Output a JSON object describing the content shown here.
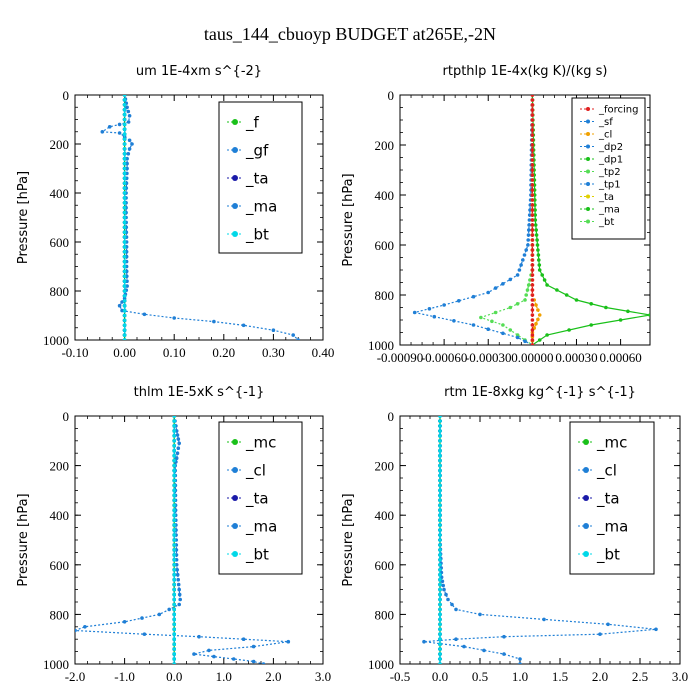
{
  "figure_title": "taus_144_cbuoyp  BUDGET at265E,-2N",
  "colors": {
    "blue": "#1f7fd6",
    "green": "#19c019",
    "navy": "#1a1aa8",
    "cyan": "#00d8e8",
    "red": "#e02020",
    "orange": "#f0a000",
    "yellow": "#e0d000",
    "green2": "#55dd55"
  },
  "chart_data": [
    {
      "type": "line",
      "title": "um  1E-4xm s^{-2}",
      "ylabel": "Pressure [hPa]",
      "xlim": [
        -0.1,
        0.4
      ],
      "ylim": [
        1000,
        0
      ],
      "xticks": [
        "-0.10",
        "0.00",
        "0.10",
        "0.20",
        "0.30",
        "0.40"
      ],
      "yticks": [
        "0",
        "200",
        "400",
        "600",
        "800",
        "1000"
      ],
      "legend_position": "top-right",
      "legend": [
        "_f",
        "_gf",
        "_ta",
        "_ma",
        "_bt"
      ],
      "series": [
        {
          "name": "_f",
          "color": "green",
          "points": [
            [
              0,
              0
            ],
            [
              0,
              100
            ],
            [
              0,
              200
            ],
            [
              0,
              300
            ],
            [
              0,
              400
            ],
            [
              0,
              500
            ],
            [
              0,
              600
            ],
            [
              0,
              700
            ],
            [
              0,
              800
            ],
            [
              0,
              900
            ],
            [
              0,
              1000
            ]
          ]
        },
        {
          "name": "_gf",
          "color": "blue",
          "points": [
            [
              0,
              0
            ],
            [
              0.005,
              50
            ],
            [
              0.01,
              85
            ],
            [
              0.008,
              110
            ],
            [
              -0.01,
              120
            ],
            [
              -0.03,
              130
            ],
            [
              -0.045,
              150
            ],
            [
              -0.01,
              155
            ],
            [
              0.0,
              170
            ],
            [
              0.01,
              185
            ],
            [
              0.015,
              200
            ],
            [
              0.01,
              220
            ],
            [
              0.005,
              260
            ],
            [
              0.005,
              300
            ],
            [
              0.003,
              400
            ],
            [
              0.003,
              500
            ],
            [
              0.004,
              600
            ],
            [
              0.004,
              700
            ],
            [
              0.005,
              780
            ],
            [
              0.0,
              830
            ],
            [
              -0.01,
              860
            ],
            [
              -0.005,
              880
            ],
            [
              0.04,
              895
            ],
            [
              0.1,
              910
            ],
            [
              0.18,
              925
            ],
            [
              0.24,
              940
            ],
            [
              0.3,
              960
            ],
            [
              0.34,
              980
            ],
            [
              0.35,
              1000
            ]
          ]
        },
        {
          "name": "_ta",
          "color": "navy",
          "points": [
            [
              0,
              0
            ],
            [
              0,
              500
            ],
            [
              0,
              1000
            ]
          ]
        },
        {
          "name": "_ma",
          "color": "blue",
          "points": [
            [
              0,
              0
            ],
            [
              0,
              500
            ],
            [
              0,
              1000
            ]
          ]
        },
        {
          "name": "_bt",
          "color": "cyan",
          "points": [
            [
              0,
              0
            ],
            [
              0,
              1000
            ]
          ]
        }
      ]
    },
    {
      "type": "line",
      "title": "rtpthlp  1E-4x(kg K)/(kg s)",
      "ylabel": "Pressure [hPa]",
      "xlim": [
        -0.0009,
        0.0008
      ],
      "ylim": [
        1000,
        0
      ],
      "xticks": [
        "-0.00090",
        "-0.00060",
        "-0.00030",
        "0.00000",
        "0.00030",
        "0.00060"
      ],
      "yticks": [
        "0",
        "200",
        "400",
        "600",
        "800",
        "1000"
      ],
      "legend_position": "top-right",
      "legend": [
        "_forcing",
        "_sf",
        "_cl",
        "_dp2",
        "_dp1",
        "_tp2",
        "_tp1",
        "_ta",
        "_ma",
        "_bt"
      ],
      "series": [
        {
          "name": "_dp1",
          "color": "green",
          "points": [
            [
              0,
              0
            ],
            [
              2e-05,
              500
            ],
            [
              5e-05,
              700
            ],
            [
              0.0001,
              760
            ],
            [
              0.0003,
              820
            ],
            [
              0.0005,
              850
            ],
            [
              0.0008,
              880
            ],
            [
              0.0004,
              920
            ],
            [
              0.0001,
              960
            ],
            [
              0,
              1000
            ]
          ]
        },
        {
          "name": "_tp2",
          "color": "green2",
          "points": [
            [
              0,
              0
            ],
            [
              0,
              700
            ],
            [
              -5e-05,
              820
            ],
            [
              -0.00015,
              850
            ],
            [
              -0.00025,
              870
            ],
            [
              -0.00035,
              890
            ],
            [
              -0.0002,
              920
            ],
            [
              -0.0001,
              960
            ],
            [
              0,
              1000
            ]
          ]
        },
        {
          "name": "_tp1",
          "color": "blue",
          "points": [
            [
              0,
              0
            ],
            [
              -1e-05,
              400
            ],
            [
              -3e-05,
              600
            ],
            [
              -0.0001,
              720
            ],
            [
              -0.0003,
              790
            ],
            [
              -0.0006,
              840
            ],
            [
              -0.0008,
              870
            ],
            [
              -0.0004,
              920
            ],
            [
              -0.0001,
              970
            ],
            [
              0,
              1000
            ]
          ]
        },
        {
          "name": "_cl",
          "color": "orange",
          "points": [
            [
              0,
              0
            ],
            [
              0,
              800
            ],
            [
              5e-05,
              880
            ],
            [
              0,
              950
            ],
            [
              0,
              1000
            ]
          ]
        },
        {
          "name": "_forcing",
          "color": "red",
          "points": [
            [
              0,
              0
            ],
            [
              0,
              100
            ],
            [
              0,
              200
            ],
            [
              0,
              300
            ],
            [
              0,
              400
            ],
            [
              0,
              500
            ],
            [
              0,
              600
            ],
            [
              0,
              700
            ],
            [
              0,
              800
            ],
            [
              0,
              900
            ],
            [
              0,
              1000
            ]
          ]
        }
      ]
    },
    {
      "type": "line",
      "title": "thlm  1E-5xK s^{-1}",
      "ylabel": "Pressure [hPa]",
      "xlim": [
        -2.0,
        3.0
      ],
      "ylim": [
        1000,
        0
      ],
      "xticks": [
        "-2.0",
        "-1.0",
        "0.0",
        "1.0",
        "2.0",
        "3.0"
      ],
      "yticks": [
        "0",
        "200",
        "400",
        "600",
        "800",
        "1000"
      ],
      "legend_position": "top-right",
      "legend": [
        "_mc",
        "_cl",
        "_ta",
        "_ma",
        "_bt"
      ],
      "series": [
        {
          "name": "_mc",
          "color": "green",
          "points": [
            [
              0,
              0
            ],
            [
              0,
              100
            ],
            [
              0,
              200
            ],
            [
              0,
              300
            ],
            [
              0,
              400
            ],
            [
              0,
              500
            ],
            [
              0,
              600
            ],
            [
              0,
              700
            ],
            [
              0,
              800
            ],
            [
              0,
              900
            ],
            [
              0,
              1000
            ]
          ]
        },
        {
          "name": "_cl",
          "color": "blue",
          "points": [
            [
              0,
              0
            ],
            [
              0.05,
              60
            ],
            [
              0.1,
              110
            ],
            [
              0.05,
              170
            ],
            [
              0.02,
              200
            ],
            [
              0.03,
              400
            ],
            [
              0.05,
              600
            ],
            [
              0.1,
              700
            ],
            [
              0.12,
              740
            ],
            [
              0.1,
              760
            ],
            [
              -0.3,
              800
            ],
            [
              -1.0,
              830
            ],
            [
              -1.8,
              850
            ],
            [
              -2.0,
              865
            ],
            [
              -0.6,
              880
            ],
            [
              0.5,
              890
            ],
            [
              1.4,
              900
            ],
            [
              2.3,
              910
            ],
            [
              1.6,
              930
            ],
            [
              0.7,
              945
            ],
            [
              0.4,
              960
            ],
            [
              0.8,
              970
            ],
            [
              1.2,
              980
            ],
            [
              1.6,
              990
            ],
            [
              1.8,
              1000
            ]
          ]
        },
        {
          "name": "_ta",
          "color": "navy",
          "points": [
            [
              0,
              0
            ],
            [
              0,
              1000
            ]
          ]
        },
        {
          "name": "_ma",
          "color": "blue",
          "points": [
            [
              0,
              0
            ],
            [
              0,
              1000
            ]
          ]
        },
        {
          "name": "_bt",
          "color": "cyan",
          "points": [
            [
              0,
              0
            ],
            [
              0,
              1000
            ]
          ]
        }
      ]
    },
    {
      "type": "line",
      "title": "rtm  1E-8xkg kg^{-1} s^{-1}",
      "ylabel": "Pressure [hPa]",
      "xlim": [
        -0.5,
        3.0
      ],
      "ylim": [
        1000,
        0
      ],
      "xticks": [
        "-0.5",
        "0.0",
        "0.5",
        "1.0",
        "1.5",
        "2.0",
        "2.5",
        "3.0"
      ],
      "yticks": [
        "0",
        "200",
        "400",
        "600",
        "800",
        "1000"
      ],
      "legend_position": "top-right",
      "legend": [
        "_mc",
        "_cl",
        "_ta",
        "_ma",
        "_bt"
      ],
      "series": [
        {
          "name": "_mc",
          "color": "green",
          "points": [
            [
              0,
              0
            ],
            [
              0,
              100
            ],
            [
              0,
              200
            ],
            [
              0,
              300
            ],
            [
              0,
              400
            ],
            [
              0,
              500
            ],
            [
              0,
              600
            ],
            [
              0,
              700
            ],
            [
              0,
              800
            ],
            [
              0,
              900
            ],
            [
              0,
              1000
            ]
          ]
        },
        {
          "name": "_cl",
          "color": "blue",
          "points": [
            [
              0,
              0
            ],
            [
              0,
              500
            ],
            [
              0.02,
              650
            ],
            [
              0.05,
              700
            ],
            [
              0.1,
              740
            ],
            [
              0.2,
              780
            ],
            [
              0.5,
              800
            ],
            [
              1.3,
              820
            ],
            [
              2.1,
              840
            ],
            [
              2.7,
              860
            ],
            [
              2.0,
              880
            ],
            [
              0.8,
              890
            ],
            [
              0.2,
              900
            ],
            [
              -0.2,
              910
            ],
            [
              0.3,
              930
            ],
            [
              0.8,
              960
            ],
            [
              1.0,
              980
            ],
            [
              1.0,
              1000
            ]
          ]
        },
        {
          "name": "_ta",
          "color": "navy",
          "points": [
            [
              0,
              0
            ],
            [
              0,
              1000
            ]
          ]
        },
        {
          "name": "_ma",
          "color": "blue",
          "points": [
            [
              0,
              0
            ],
            [
              0,
              1000
            ]
          ]
        },
        {
          "name": "_bt",
          "color": "cyan",
          "points": [
            [
              0,
              0
            ],
            [
              0,
              1000
            ]
          ]
        }
      ]
    }
  ]
}
